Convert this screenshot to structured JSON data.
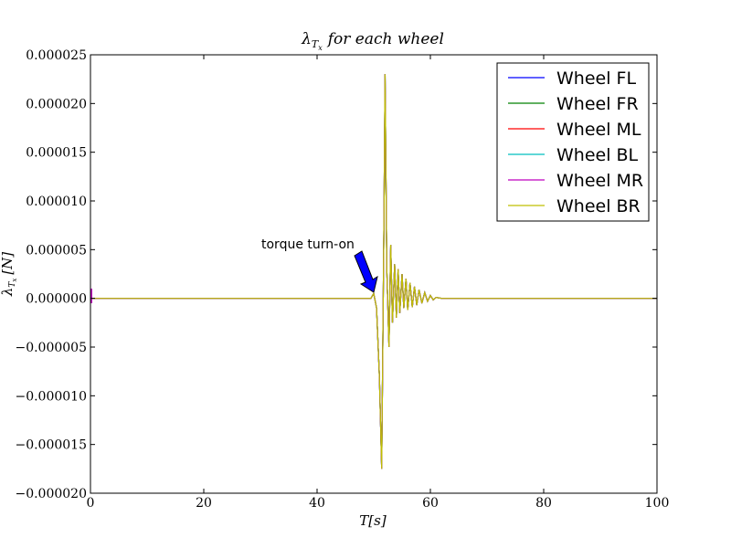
{
  "chart_data": {
    "type": "line",
    "title": "λ_{T_x} for each wheel",
    "xlabel": "T[s]",
    "ylabel": "λ_{T_x} [N]",
    "xlim": [
      0,
      100
    ],
    "ylim": [
      -2e-05,
      2.5e-05
    ],
    "xticks": [
      0,
      20,
      40,
      60,
      80,
      100
    ],
    "xtick_labels": [
      "0",
      "20",
      "40",
      "60",
      "80",
      "100"
    ],
    "yticks": [
      2.5e-05,
      2e-05,
      1.5e-05,
      1e-05,
      5e-06,
      0,
      -5e-06,
      -1e-05,
      -1.5e-05,
      -2e-05
    ],
    "ytick_labels": [
      "0.000025",
      "0.000020",
      "0.000015",
      "0.000010",
      "0.000005",
      "0.000000",
      "−0.000005",
      "−0.000010",
      "−0.000015",
      "−0.000020"
    ],
    "grid": false,
    "legend_position": "top-right",
    "annotation": {
      "text": "torque turn-on",
      "x": 50,
      "y": 0
    },
    "series": [
      {
        "name": "Wheel FL",
        "color": "#0000ff"
      },
      {
        "name": "Wheel FR",
        "color": "#008000"
      },
      {
        "name": "Wheel ML",
        "color": "#ff0000"
      },
      {
        "name": "Wheel BL",
        "color": "#00bfbf"
      },
      {
        "name": "Wheel MR",
        "color": "#bf00bf"
      },
      {
        "name": "Wheel BR",
        "color": "#bfbf00"
      }
    ],
    "shared_signal": {
      "x": [
        0,
        49.5,
        50.0,
        50.5,
        51.0,
        51.4,
        51.8,
        52.0,
        52.3,
        52.7,
        53.0,
        53.3,
        53.7,
        54.0,
        54.3,
        54.6,
        55.0,
        55.3,
        55.7,
        56.0,
        56.4,
        56.8,
        57.2,
        57.6,
        58.0,
        58.5,
        59.0,
        59.5,
        60.0,
        60.5,
        61.0,
        62.0,
        100
      ],
      "y": [
        0,
        0,
        5e-07,
        -1e-06,
        -8e-06,
        -1.75e-05,
        8e-06,
        2.3e-05,
        3e-06,
        -5e-06,
        5.5e-06,
        -2.5e-06,
        3.5e-06,
        -2e-06,
        3e-06,
        -1.5e-06,
        2.5e-06,
        -1e-06,
        2e-06,
        -1.2e-06,
        1.6e-06,
        -9e-07,
        1.2e-06,
        -7e-07,
        9e-07,
        -5e-07,
        6e-07,
        -3e-07,
        3e-07,
        -1.5e-07,
        1e-07,
        0,
        0
      ]
    }
  }
}
